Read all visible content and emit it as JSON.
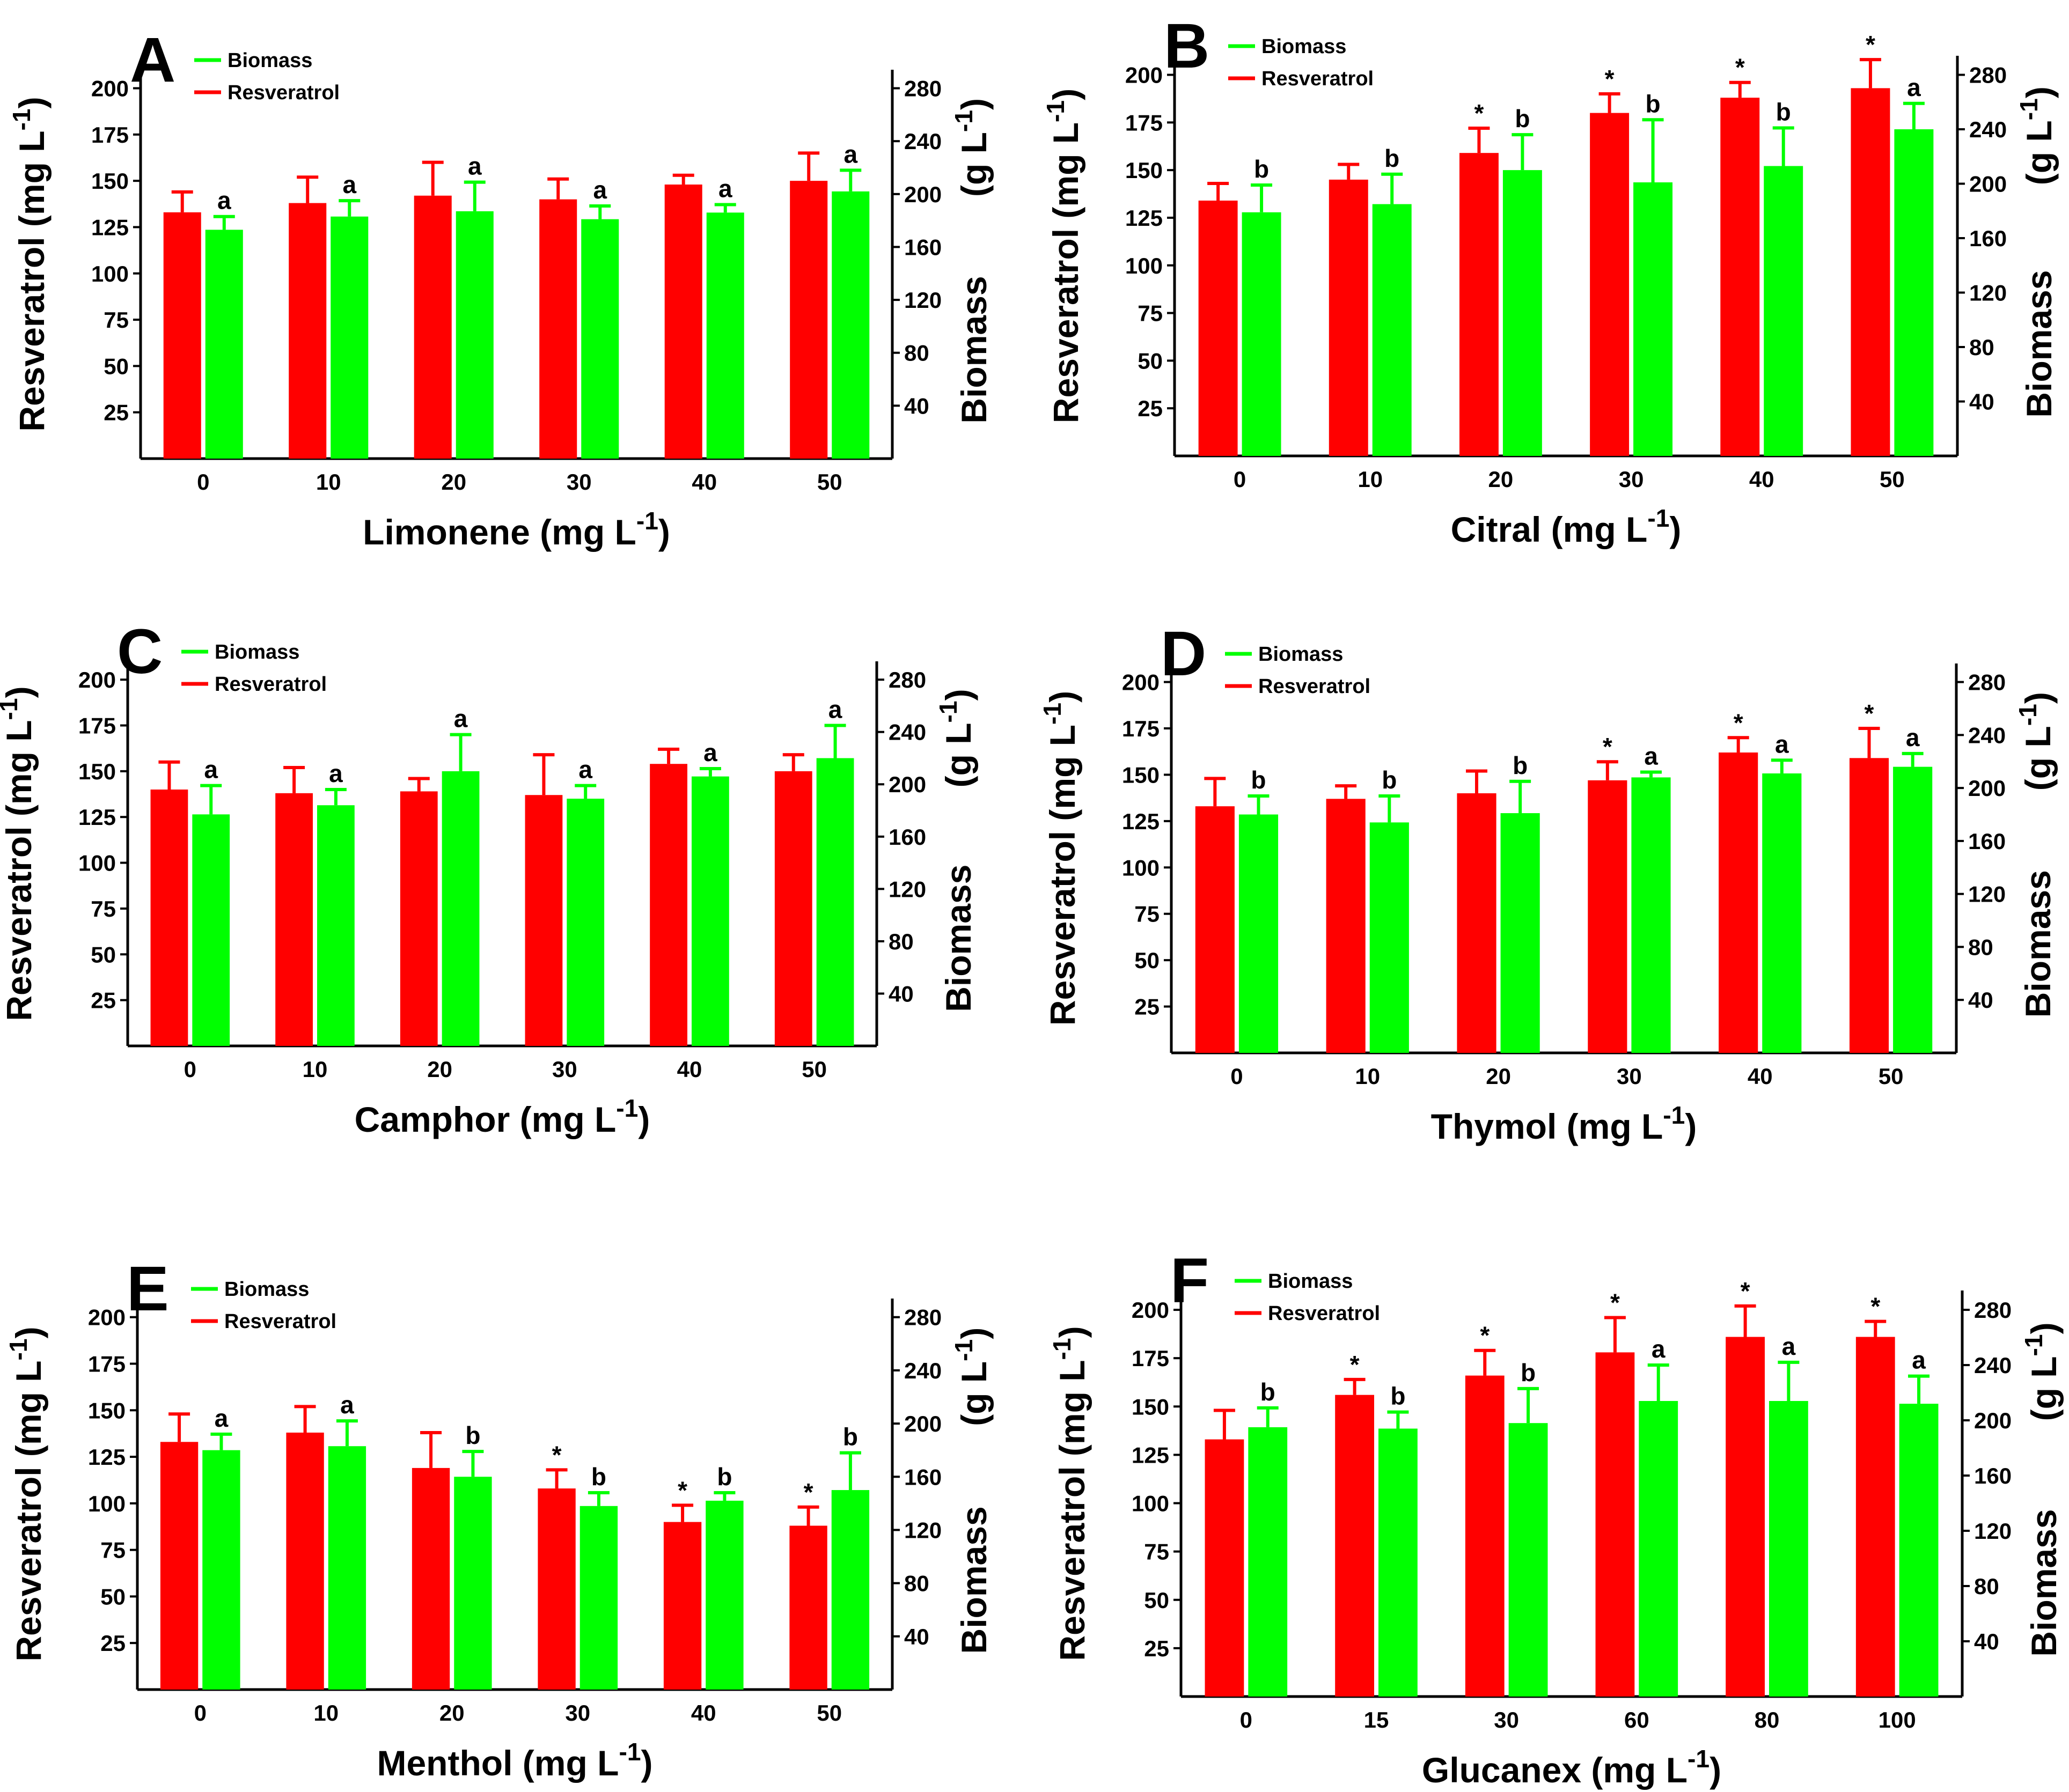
{
  "colors": {
    "resveratrol": "#ff0000",
    "biomass": "#00ff00",
    "axis": "#000000"
  },
  "chart_data": [
    {
      "type": "bar",
      "panel": "A",
      "title": "",
      "xlabel": "Limonene",
      "xunit": "(mg L-1)",
      "ylabel_left": "Resveratrol (mg L-1)",
      "ylabel_right_name": "Biomass",
      "ylabel_right_unit": "(g L-1)",
      "legend": [
        "Biomass",
        "Resveratrol"
      ],
      "categories": [
        "0",
        "10",
        "20",
        "30",
        "40",
        "50"
      ],
      "y_left_ticks": [
        25,
        50,
        75,
        100,
        125,
        150,
        175,
        200
      ],
      "y_right_ticks": [
        40,
        80,
        120,
        160,
        200,
        240,
        280
      ],
      "ylim_left": [
        0,
        210
      ],
      "ylim_right": [
        0,
        294
      ],
      "series": [
        {
          "name": "Resveratrol",
          "axis": "left",
          "values": [
            133,
            138,
            142,
            140,
            148,
            150
          ],
          "errors": [
            11,
            14,
            18,
            11,
            5,
            15
          ],
          "annotations": [
            "",
            "",
            "",
            "",
            "",
            ""
          ]
        },
        {
          "name": "Biomass",
          "axis": "right",
          "values": [
            173,
            183,
            187,
            181,
            186,
            202
          ],
          "errors": [
            10,
            12,
            22,
            10,
            6,
            16
          ],
          "annotations": [
            "a",
            "a",
            "a",
            "a",
            "a",
            "a"
          ]
        }
      ]
    },
    {
      "type": "bar",
      "panel": "B",
      "title": "",
      "xlabel": "Citral",
      "xunit": "(mg L-1)",
      "ylabel_left": "Resveratrol (mg L-1)",
      "ylabel_right_name": "Biomass",
      "ylabel_right_unit": "(g L-1)",
      "legend": [
        "Biomass",
        "Resveratrol"
      ],
      "categories": [
        "0",
        "10",
        "20",
        "30",
        "40",
        "50"
      ],
      "y_left_ticks": [
        25,
        50,
        75,
        100,
        125,
        150,
        175,
        200
      ],
      "y_right_ticks": [
        40,
        80,
        120,
        160,
        200,
        240,
        280
      ],
      "ylim_left": [
        0,
        210
      ],
      "ylim_right": [
        0,
        294
      ],
      "series": [
        {
          "name": "Resveratrol",
          "axis": "left",
          "values": [
            134,
            145,
            159,
            180,
            188,
            193
          ],
          "errors": [
            9,
            8,
            13,
            10,
            8,
            15
          ],
          "annotations": [
            "",
            "",
            "*",
            "*",
            "*",
            "*"
          ]
        },
        {
          "name": "Biomass",
          "axis": "right",
          "values": [
            179,
            185,
            210,
            201,
            213,
            240
          ],
          "errors": [
            20,
            22,
            26,
            46,
            28,
            19
          ],
          "annotations": [
            "b",
            "b",
            "b",
            "b",
            "b",
            "a"
          ]
        }
      ]
    },
    {
      "type": "bar",
      "panel": "C",
      "title": "",
      "xlabel": "Camphor",
      "xunit": "(mg L-1)",
      "ylabel_left": "Resveratrol (mg L-1)",
      "ylabel_right_name": "Biomass",
      "ylabel_right_unit": "(g L-1)",
      "legend": [
        "Biomass",
        "Resveratrol"
      ],
      "categories": [
        "0",
        "10",
        "20",
        "30",
        "40",
        "50"
      ],
      "y_left_ticks": [
        25,
        50,
        75,
        100,
        125,
        150,
        175,
        200
      ],
      "y_right_ticks": [
        40,
        80,
        120,
        160,
        200,
        240,
        280
      ],
      "ylim_left": [
        0,
        210
      ],
      "ylim_right": [
        0,
        294
      ],
      "series": [
        {
          "name": "Resveratrol",
          "axis": "left",
          "values": [
            140,
            138,
            139,
            137,
            154,
            150
          ],
          "errors": [
            15,
            14,
            7,
            22,
            8,
            9
          ],
          "annotations": [
            "",
            "",
            "",
            "",
            "",
            ""
          ]
        },
        {
          "name": "Biomass",
          "axis": "right",
          "values": [
            177,
            184,
            210,
            189,
            206,
            220
          ],
          "errors": [
            22,
            12,
            28,
            10,
            6,
            25
          ],
          "annotations": [
            "a",
            "a",
            "a",
            "a",
            "a",
            "a"
          ]
        }
      ]
    },
    {
      "type": "bar",
      "panel": "D",
      "title": "",
      "xlabel": "Thymol",
      "xunit": "(mg L-1)",
      "ylabel_left": "Resveratrol (mg L-1)",
      "ylabel_right_name": "Biomass",
      "ylabel_right_unit": "(g L-1)",
      "legend": [
        "Biomass",
        "Resveratrol"
      ],
      "categories": [
        "0",
        "10",
        "20",
        "30",
        "40",
        "50"
      ],
      "y_left_ticks": [
        25,
        50,
        75,
        100,
        125,
        150,
        175,
        200
      ],
      "y_right_ticks": [
        40,
        80,
        120,
        160,
        200,
        240,
        280
      ],
      "ylim_left": [
        0,
        210
      ],
      "ylim_right": [
        0,
        294
      ],
      "series": [
        {
          "name": "Resveratrol",
          "axis": "left",
          "values": [
            133,
            137,
            140,
            147,
            162,
            159
          ],
          "errors": [
            15,
            7,
            12,
            10,
            8,
            16
          ],
          "annotations": [
            "",
            "",
            "",
            "*",
            "*",
            "*"
          ]
        },
        {
          "name": "Biomass",
          "axis": "right",
          "values": [
            180,
            174,
            181,
            208,
            211,
            216
          ],
          "errors": [
            14,
            20,
            24,
            4,
            10,
            10
          ],
          "annotations": [
            "b",
            "b",
            "b",
            "a",
            "a",
            "a"
          ]
        }
      ]
    },
    {
      "type": "bar",
      "panel": "E",
      "title": "",
      "xlabel": "Menthol",
      "xunit": "(mg L-1)",
      "ylabel_left": "Resveratrol (mg L-1)",
      "ylabel_right_name": "Biomass",
      "ylabel_right_unit": "(g L-1)",
      "legend": [
        "Biomass",
        "Resveratrol"
      ],
      "categories": [
        "0",
        "10",
        "20",
        "30",
        "40",
        "50"
      ],
      "y_left_ticks": [
        25,
        50,
        75,
        100,
        125,
        150,
        175,
        200
      ],
      "y_right_ticks": [
        40,
        80,
        120,
        160,
        200,
        240,
        280
      ],
      "ylim_left": [
        0,
        210
      ],
      "ylim_right": [
        0,
        294
      ],
      "series": [
        {
          "name": "Resveratrol",
          "axis": "left",
          "values": [
            133,
            138,
            119,
            108,
            90,
            88
          ],
          "errors": [
            15,
            14,
            19,
            10,
            9,
            10
          ],
          "annotations": [
            "",
            "",
            "",
            "*",
            "*",
            "*"
          ]
        },
        {
          "name": "Biomass",
          "axis": "right",
          "values": [
            180,
            183,
            160,
            138,
            142,
            150
          ],
          "errors": [
            12,
            19,
            19,
            10,
            6,
            28
          ],
          "annotations": [
            "a",
            "a",
            "b",
            "b",
            "b",
            "b"
          ]
        }
      ]
    },
    {
      "type": "bar",
      "panel": "F",
      "title": "",
      "xlabel": "Glucanex",
      "xunit": "(mg L-1)",
      "ylabel_left": "Resveratrol (mg L-1)",
      "ylabel_right_name": "Biomass",
      "ylabel_right_unit": "(g L-1)",
      "legend": [
        "Biomass",
        "Resveratrol"
      ],
      "categories": [
        "0",
        "15",
        "30",
        "60",
        "80",
        "100"
      ],
      "y_left_ticks": [
        25,
        50,
        75,
        100,
        125,
        150,
        175,
        200
      ],
      "y_right_ticks": [
        40,
        80,
        120,
        160,
        200,
        240,
        280
      ],
      "ylim_left": [
        0,
        210
      ],
      "ylim_right": [
        0,
        294
      ],
      "series": [
        {
          "name": "Resveratrol",
          "axis": "left",
          "values": [
            133,
            156,
            166,
            178,
            186,
            186
          ],
          "errors": [
            15,
            8,
            13,
            18,
            16,
            8
          ],
          "annotations": [
            "",
            "*",
            "*",
            "*",
            "*",
            "*"
          ]
        },
        {
          "name": "Biomass",
          "axis": "right",
          "values": [
            195,
            194,
            198,
            214,
            214,
            212
          ],
          "errors": [
            14,
            12,
            25,
            26,
            28,
            20
          ],
          "annotations": [
            "b",
            "b",
            "b",
            "a",
            "a",
            "a"
          ]
        }
      ]
    }
  ]
}
